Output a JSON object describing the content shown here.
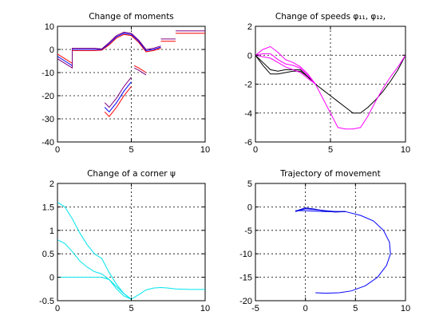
{
  "chart_data": [
    {
      "type": "line",
      "title": "Change of moments",
      "xlim": [
        0,
        10
      ],
      "ylim": [
        -40,
        10
      ],
      "xticks": [
        0,
        5,
        10
      ],
      "yticks": [
        -40,
        -30,
        -20,
        -10,
        0,
        10
      ],
      "grid": true,
      "series": [
        {
          "color": "#ff0000",
          "points": [
            [
              0,
              -2
            ],
            [
              0.5,
              -4
            ],
            [
              1,
              -6
            ],
            [
              1,
              -0.5
            ],
            [
              1.5,
              -0.5
            ],
            [
              2,
              -0.5
            ],
            [
              2.5,
              -0.5
            ],
            [
              3,
              -0.3
            ],
            [
              3.5,
              2
            ],
            [
              4,
              5
            ],
            [
              4.5,
              6.5
            ],
            [
              5,
              6
            ],
            [
              5.5,
              3
            ],
            [
              6,
              -1
            ],
            [
              6.5,
              -0.5
            ],
            [
              7,
              0.5
            ]
          ]
        },
        {
          "color": "#0000ff",
          "points": [
            [
              0,
              -3
            ],
            [
              0.5,
              -5
            ],
            [
              1,
              -7
            ],
            [
              1,
              0
            ],
            [
              1.5,
              0
            ],
            [
              2,
              0
            ],
            [
              2.5,
              0
            ],
            [
              3,
              0
            ],
            [
              3.5,
              2.5
            ],
            [
              4,
              5.5
            ],
            [
              4.5,
              7
            ],
            [
              5,
              6.5
            ],
            [
              5.5,
              3.5
            ],
            [
              6,
              -0.5
            ],
            [
              6.5,
              0
            ],
            [
              7,
              1
            ]
          ]
        },
        {
          "color": "#800080",
          "points": [
            [
              0,
              -4
            ],
            [
              0.5,
              -6
            ],
            [
              1,
              -8
            ],
            [
              1,
              0.5
            ],
            [
              1.5,
              0.5
            ],
            [
              2,
              0.5
            ],
            [
              2.5,
              0.5
            ],
            [
              3,
              0.2
            ],
            [
              3.5,
              3
            ],
            [
              4,
              6
            ],
            [
              4.5,
              7.5
            ],
            [
              5,
              7
            ],
            [
              5.5,
              4
            ],
            [
              6,
              0
            ],
            [
              6.5,
              0.5
            ],
            [
              7,
              1.5
            ]
          ]
        },
        {
          "color": "#ff0000",
          "points": [
            [
              3.2,
              -27
            ],
            [
              3.5,
              -29
            ],
            [
              4,
              -25
            ],
            [
              4.5,
              -20
            ],
            [
              5,
              -16
            ]
          ]
        },
        {
          "color": "#0000ff",
          "points": [
            [
              3.2,
              -25
            ],
            [
              3.5,
              -27
            ],
            [
              4,
              -23
            ],
            [
              4.5,
              -18
            ],
            [
              5,
              -14
            ]
          ]
        },
        {
          "color": "#800080",
          "points": [
            [
              3.2,
              -23
            ],
            [
              3.5,
              -25
            ],
            [
              4,
              -21
            ],
            [
              4.5,
              -16
            ],
            [
              5,
              -12
            ]
          ]
        },
        {
          "color": "#ff0000",
          "points": [
            [
              5.2,
              -7
            ],
            [
              5.5,
              -8
            ],
            [
              6,
              -10
            ]
          ]
        },
        {
          "color": "#800080",
          "points": [
            [
              5.2,
              -8
            ],
            [
              5.5,
              -9
            ],
            [
              6,
              -11
            ]
          ]
        },
        {
          "color": "#ff0000",
          "points": [
            [
              7,
              3.5
            ],
            [
              8,
              3.5
            ]
          ]
        },
        {
          "color": "#800080",
          "points": [
            [
              7,
              4.5
            ],
            [
              8,
              4.5
            ]
          ]
        },
        {
          "color": "#ff0000",
          "points": [
            [
              8,
              7
            ],
            [
              10,
              7
            ]
          ]
        },
        {
          "color": "#800080",
          "points": [
            [
              8,
              8
            ],
            [
              10,
              8
            ]
          ]
        }
      ]
    },
    {
      "type": "line",
      "title": "Change of speeds  φ₁₁, φ₁₂,",
      "xlim": [
        0,
        10
      ],
      "ylim": [
        -6,
        2
      ],
      "xticks": [
        0,
        5,
        10
      ],
      "yticks": [
        -6,
        -4,
        -2,
        0,
        2
      ],
      "grid": true,
      "series": [
        {
          "color": "#000000",
          "points": [
            [
              0,
              0
            ],
            [
              0.5,
              -0.5
            ],
            [
              1,
              -1
            ],
            [
              1.5,
              -1.1
            ],
            [
              2,
              -1.0
            ],
            [
              2.5,
              -1.0
            ],
            [
              3,
              -1.0
            ],
            [
              3.5,
              -1.5
            ],
            [
              4,
              -2.0
            ],
            [
              4.5,
              -2.4
            ],
            [
              5,
              -2.8
            ],
            [
              5.5,
              -3.2
            ],
            [
              6,
              -3.6
            ],
            [
              6.5,
              -4.0
            ],
            [
              7,
              -4.0
            ],
            [
              7.5,
              -3.6
            ],
            [
              8,
              -3.1
            ],
            [
              8.5,
              -2.5
            ],
            [
              9,
              -1.8
            ],
            [
              9.5,
              -1.0
            ],
            [
              10,
              0
            ]
          ]
        },
        {
          "color": "#000000",
          "points": [
            [
              0,
              0
            ],
            [
              0.5,
              -0.7
            ],
            [
              1,
              -1.3
            ],
            [
              1.5,
              -1.3
            ],
            [
              2,
              -1.2
            ],
            [
              2.5,
              -1.1
            ],
            [
              3,
              -1.1
            ],
            [
              3.5,
              -1.5
            ],
            [
              4,
              -2.0
            ]
          ]
        },
        {
          "color": "#ff00ff",
          "points": [
            [
              0,
              0
            ],
            [
              0.5,
              0.4
            ],
            [
              1,
              0.6
            ],
            [
              1.5,
              0.2
            ],
            [
              2,
              -0.3
            ],
            [
              2.5,
              -0.5
            ],
            [
              3,
              -0.8
            ],
            [
              3.5,
              -1.3
            ],
            [
              4,
              -2.0
            ],
            [
              4.5,
              -3.0
            ],
            [
              5,
              -4.0
            ],
            [
              5.5,
              -5.0
            ],
            [
              6,
              -5.1
            ],
            [
              6.5,
              -5.1
            ],
            [
              7,
              -5.0
            ],
            [
              7.5,
              -4.2
            ],
            [
              8,
              -3.2
            ],
            [
              8.5,
              -2.3
            ],
            [
              9,
              -1.5
            ],
            [
              9.5,
              -0.8
            ],
            [
              10,
              0
            ]
          ]
        },
        {
          "color": "#ff00ff",
          "points": [
            [
              0,
              0
            ],
            [
              0.5,
              -0.1
            ],
            [
              1,
              -0.2
            ],
            [
              1.5,
              -0.5
            ],
            [
              2,
              -0.8
            ],
            [
              2.5,
              -1.0
            ],
            [
              3,
              -1.2
            ],
            [
              3.5,
              -1.6
            ],
            [
              4,
              -2.0
            ]
          ]
        },
        {
          "color": "#ff00ff",
          "points": [
            [
              0,
              0
            ],
            [
              0.5,
              0.1
            ],
            [
              1,
              0.1
            ],
            [
              1.5,
              -0.3
            ],
            [
              2,
              -0.6
            ],
            [
              2.5,
              -0.7
            ],
            [
              3,
              -0.9
            ],
            [
              3.5,
              -1.4
            ],
            [
              4,
              -2.0
            ]
          ]
        }
      ]
    },
    {
      "type": "line",
      "title": "Change of a corner  ψ",
      "xlim": [
        0,
        10
      ],
      "ylim": [
        -0.5,
        2
      ],
      "xticks": [
        0,
        5,
        10
      ],
      "yticks": [
        -0.5,
        0,
        0.5,
        1,
        1.5,
        2
      ],
      "grid": true,
      "series": [
        {
          "color": "#00e5ee",
          "points": [
            [
              0,
              1.6
            ],
            [
              0.5,
              1.5
            ],
            [
              1,
              1.25
            ],
            [
              1.5,
              0.95
            ],
            [
              2,
              0.7
            ],
            [
              2.5,
              0.5
            ],
            [
              3,
              0.4
            ],
            [
              3.5,
              0.1
            ],
            [
              4,
              -0.15
            ],
            [
              4.5,
              -0.35
            ],
            [
              5,
              -0.47
            ],
            [
              5.5,
              -0.37
            ],
            [
              6,
              -0.27
            ],
            [
              6.5,
              -0.23
            ],
            [
              7,
              -0.22
            ],
            [
              7.5,
              -0.23
            ],
            [
              8,
              -0.25
            ],
            [
              9,
              -0.26
            ],
            [
              10,
              -0.26
            ]
          ]
        },
        {
          "color": "#00e5ee",
          "points": [
            [
              0,
              0.8
            ],
            [
              0.5,
              0.72
            ],
            [
              1,
              0.55
            ],
            [
              1.5,
              0.35
            ],
            [
              2,
              0.22
            ],
            [
              2.5,
              0.12
            ],
            [
              3,
              0.07
            ],
            [
              3.5,
              -0.05
            ],
            [
              4,
              -0.25
            ],
            [
              4.5,
              -0.4
            ],
            [
              5,
              -0.47
            ]
          ]
        },
        {
          "color": "#00e5ee",
          "points": [
            [
              0,
              0
            ],
            [
              1,
              0
            ],
            [
              2,
              0
            ],
            [
              3,
              0
            ],
            [
              3.5,
              -0.05
            ],
            [
              4,
              -0.2
            ],
            [
              4.5,
              -0.35
            ],
            [
              5,
              -0.47
            ]
          ]
        }
      ]
    },
    {
      "type": "line",
      "title": "Trajectory of movement",
      "xlim": [
        -5,
        10
      ],
      "ylim": [
        -20,
        5
      ],
      "xticks": [
        -5,
        0,
        5,
        10
      ],
      "yticks": [
        -20,
        -15,
        -10,
        -5,
        0,
        5
      ],
      "grid": true,
      "series": [
        {
          "color": "#0000ff",
          "points": [
            [
              -1,
              -0.8
            ],
            [
              0,
              -0.8
            ],
            [
              1,
              -0.9
            ],
            [
              2,
              -1.0
            ],
            [
              3,
              -1.0
            ],
            [
              4,
              -1.0
            ]
          ]
        },
        {
          "color": "#0000ff",
          "points": [
            [
              -1,
              -1.0
            ],
            [
              0,
              -0.4
            ],
            [
              1,
              -0.6
            ],
            [
              2,
              -0.8
            ],
            [
              3,
              -1.0
            ],
            [
              4,
              -1.0
            ]
          ]
        },
        {
          "color": "#0000cc",
          "points": [
            [
              -1,
              -0.9
            ],
            [
              0,
              -0.2
            ],
            [
              1,
              -0.5
            ],
            [
              2,
              -0.9
            ],
            [
              3,
              -1.1
            ],
            [
              4,
              -1.0
            ]
          ]
        },
        {
          "color": "#0000ff",
          "points": [
            [
              4,
              -1.0
            ],
            [
              5.5,
              -1.8
            ],
            [
              6.8,
              -3.0
            ],
            [
              7.8,
              -5.0
            ],
            [
              8.4,
              -7.5
            ],
            [
              8.5,
              -10
            ],
            [
              8.1,
              -12.5
            ],
            [
              7.2,
              -15
            ],
            [
              6,
              -16.8
            ],
            [
              4.6,
              -17.9
            ],
            [
              3.4,
              -18.3
            ],
            [
              2,
              -18.4
            ],
            [
              1,
              -18.3
            ]
          ]
        }
      ]
    }
  ]
}
